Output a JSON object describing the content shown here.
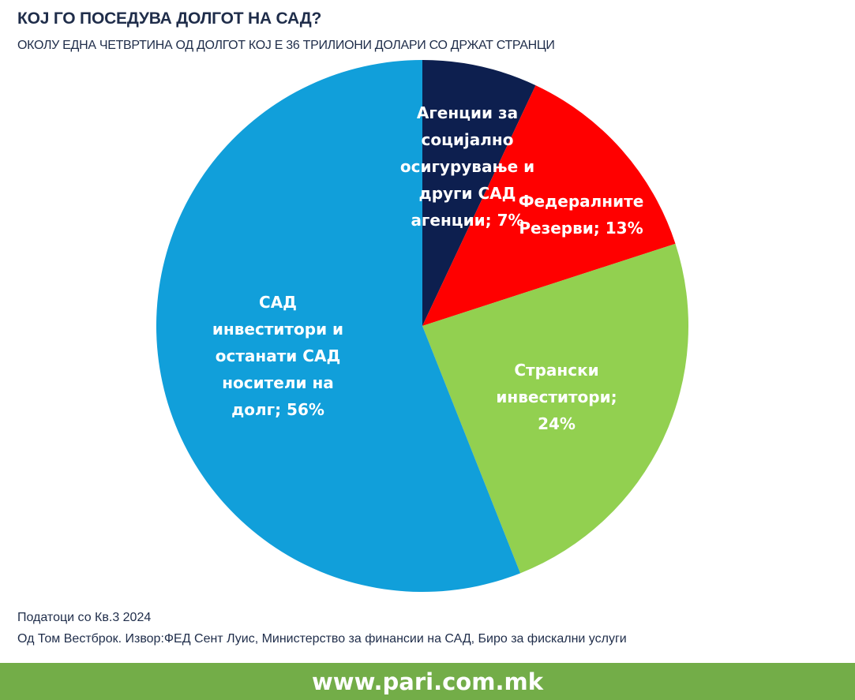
{
  "header": {
    "title": "КОЈ ГО ПОСЕДУВА ДОЛГОТ НА САД?",
    "subtitle": "ОКОЛУ ЕДНА ЧЕТВРТИНА ОД ДОЛГОТ КОЈ Е 36 ТРИЛИОНИ ДОЛАРИ СО ДРЖАТ СТРАНЦИ"
  },
  "chart_data": {
    "type": "pie",
    "title": "КОЈ ГО ПОСЕДУВА ДОЛГОТ НА САД?",
    "subtitle": "ОКОЛУ ЕДНА ЧЕТВРТИНА ОД ДОЛГОТ КОЈ Е 36 ТРИЛИОНИ ДОЛАРИ СО ДРЖАТ СТРАНЦИ",
    "slices": [
      {
        "label_lines": [
          "Агенции за",
          "социјално",
          "осигурување и",
          "други САД",
          "агенции; 7%"
        ],
        "value": 7,
        "color": "#0d1f4f"
      },
      {
        "label_lines": [
          "Федералните",
          "Резерви; 13%"
        ],
        "value": 13,
        "color": "#ff0000"
      },
      {
        "label_lines": [
          "Странски",
          "инвеститори;",
          "24%"
        ],
        "value": 24,
        "color": "#92d050"
      },
      {
        "label_lines": [
          "САД",
          "инвеститори и",
          "останати САД",
          "носители на",
          "долг; 56%"
        ],
        "value": 56,
        "color": "#119fda"
      }
    ]
  },
  "notes": {
    "line1": "Податоци со Кв.3 2024",
    "line2": "Од Том Вестброк. Извор:ФЕД Сент Луис, Министерство за финансии на САД, Биро за фискални услуги"
  },
  "footer": {
    "text": "www.pari.com.mk",
    "color": "#73ad48"
  }
}
